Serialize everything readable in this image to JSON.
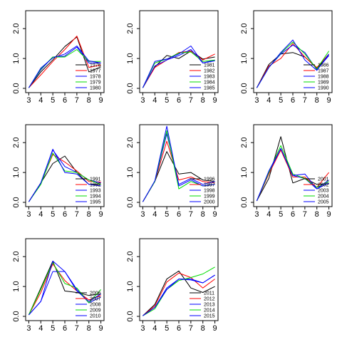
{
  "colors": [
    "#000000",
    "#ff0000",
    "#0000ff",
    "#00dd00",
    "#0000ff"
  ],
  "chart_data": [
    {
      "type": "line",
      "x": [
        3,
        4,
        5,
        6,
        7,
        8,
        9
      ],
      "xticks": [
        "3",
        "4",
        "5",
        "6",
        "7",
        "8",
        "9"
      ],
      "yticks": [
        "0.0",
        "1.0",
        "2.0"
      ],
      "ylim": [
        0,
        2.6
      ],
      "legend_position": "bottom-right",
      "series": [
        {
          "name": "1976",
          "values": [
            0.02,
            0.55,
            0.95,
            1.4,
            1.72,
            0.55,
            0.72
          ]
        },
        {
          "name": "1977",
          "values": [
            0.02,
            0.45,
            0.9,
            1.3,
            1.75,
            0.7,
            0.78
          ]
        },
        {
          "name": "1978",
          "values": [
            0.02,
            0.62,
            1.05,
            1.08,
            1.38,
            0.85,
            0.85
          ]
        },
        {
          "name": "1979",
          "values": [
            0.02,
            0.65,
            1.05,
            1.05,
            1.3,
            0.9,
            0.9
          ]
        },
        {
          "name": "1980",
          "values": [
            0.02,
            0.68,
            1.02,
            1.15,
            1.42,
            0.92,
            0.85
          ]
        }
      ]
    },
    {
      "type": "line",
      "x": [
        3,
        4,
        5,
        6,
        7,
        8,
        9
      ],
      "xticks": [
        "3",
        "4",
        "5",
        "6",
        "7",
        "8",
        "9"
      ],
      "yticks": [
        "0.0",
        "1.0",
        "2.0"
      ],
      "ylim": [
        0,
        2.6
      ],
      "legend_position": "bottom-right",
      "series": [
        {
          "name": "1981",
          "values": [
            0.02,
            0.72,
            1.1,
            1.0,
            1.25,
            0.98,
            1.05
          ]
        },
        {
          "name": "1982",
          "values": [
            0.02,
            0.7,
            0.95,
            1.2,
            1.25,
            0.95,
            1.15
          ]
        },
        {
          "name": "1983",
          "values": [
            0.02,
            0.75,
            0.95,
            1.1,
            1.3,
            0.85,
            0.95
          ]
        },
        {
          "name": "1984",
          "values": [
            0.02,
            0.85,
            0.98,
            1.18,
            1.22,
            0.9,
            0.95
          ]
        },
        {
          "name": "1985",
          "values": [
            0.02,
            0.9,
            0.98,
            1.15,
            1.42,
            0.85,
            0.92
          ]
        }
      ]
    },
    {
      "type": "line",
      "x": [
        3,
        4,
        5,
        6,
        7,
        8,
        9
      ],
      "xticks": [
        "3",
        "4",
        "5",
        "6",
        "7",
        "8",
        "9"
      ],
      "yticks": [
        "0.0",
        "1.0",
        "2.0"
      ],
      "ylim": [
        0,
        2.6
      ],
      "legend_position": "bottom-right",
      "series": [
        {
          "name": "1986",
          "values": [
            0.02,
            0.8,
            1.15,
            1.2,
            1.05,
            0.68,
            1.1
          ]
        },
        {
          "name": "1987",
          "values": [
            0.02,
            0.75,
            1.0,
            1.5,
            1.05,
            0.7,
            1.15
          ]
        },
        {
          "name": "1988",
          "values": [
            0.02,
            0.7,
            1.15,
            1.45,
            1.2,
            0.62,
            1.1
          ]
        },
        {
          "name": "1989",
          "values": [
            0.02,
            0.7,
            1.18,
            1.55,
            1.15,
            0.65,
            1.25
          ]
        },
        {
          "name": "1990",
          "values": [
            0.02,
            0.7,
            1.2,
            1.62,
            0.95,
            0.6,
            1.15
          ]
        }
      ]
    },
    {
      "type": "line",
      "x": [
        3,
        4,
        5,
        6,
        7,
        8,
        9
      ],
      "xticks": [
        "3",
        "4",
        "5",
        "6",
        "7",
        "8",
        "9"
      ],
      "yticks": [
        "0.0",
        "1.0",
        "2.0"
      ],
      "ylim": [
        0,
        2.6
      ],
      "legend_position": "bottom-right",
      "series": [
        {
          "name": "1991",
          "values": [
            0.02,
            0.65,
            1.3,
            1.55,
            1.0,
            0.6,
            0.6
          ]
        },
        {
          "name": "1992",
          "values": [
            0.02,
            0.65,
            1.6,
            1.35,
            1.05,
            0.7,
            0.68
          ]
        },
        {
          "name": "1993",
          "values": [
            0.02,
            0.65,
            1.75,
            1.2,
            1.0,
            0.75,
            0.65
          ]
        },
        {
          "name": "1994",
          "values": [
            0.02,
            0.6,
            1.65,
            1.05,
            1.0,
            0.75,
            0.6
          ]
        },
        {
          "name": "1995",
          "values": [
            0.02,
            0.65,
            1.78,
            1.0,
            0.95,
            0.6,
            0.55
          ]
        }
      ]
    },
    {
      "type": "line",
      "x": [
        3,
        4,
        5,
        6,
        7,
        8,
        9
      ],
      "xticks": [
        "3",
        "4",
        "5",
        "6",
        "7",
        "8",
        "9"
      ],
      "yticks": [
        "0.0",
        "1.0",
        "2.0"
      ],
      "ylim": [
        0,
        2.6
      ],
      "legend_position": "bottom-right",
      "series": [
        {
          "name": "1996",
          "values": [
            0.02,
            0.7,
            1.7,
            0.95,
            1.0,
            0.75,
            0.7
          ]
        },
        {
          "name": "1997",
          "values": [
            0.02,
            0.7,
            2.05,
            0.75,
            0.85,
            0.7,
            0.65
          ]
        },
        {
          "name": "1998",
          "values": [
            0.02,
            0.7,
            2.3,
            0.6,
            0.8,
            0.6,
            0.7
          ]
        },
        {
          "name": "1999",
          "values": [
            0.02,
            0.7,
            2.4,
            0.45,
            0.7,
            0.55,
            0.6
          ]
        },
        {
          "name": "2000",
          "values": [
            0.02,
            0.72,
            2.55,
            0.55,
            0.75,
            0.55,
            0.6
          ]
        }
      ]
    },
    {
      "type": "line",
      "x": [
        3,
        4,
        5,
        6,
        7,
        8,
        9
      ],
      "xticks": [
        "3",
        "4",
        "5",
        "6",
        "7",
        "8",
        "9"
      ],
      "yticks": [
        "0.0",
        "1.0",
        "2.0"
      ],
      "ylim": [
        0,
        2.6
      ],
      "legend_position": "bottom-right",
      "series": [
        {
          "name": "2001",
          "values": [
            0.05,
            0.8,
            2.2,
            0.65,
            0.8,
            0.6,
            0.62
          ]
        },
        {
          "name": "2002",
          "values": [
            0.05,
            0.95,
            1.75,
            0.85,
            0.85,
            0.5,
            1.0
          ]
        },
        {
          "name": "2003",
          "values": [
            0.05,
            1.0,
            1.8,
            0.9,
            0.8,
            0.45,
            0.65
          ]
        },
        {
          "name": "2004",
          "values": [
            0.05,
            1.0,
            1.9,
            0.95,
            0.8,
            0.5,
            0.7
          ]
        },
        {
          "name": "2005",
          "values": [
            0.05,
            1.05,
            1.8,
            0.9,
            0.95,
            0.45,
            0.75
          ]
        }
      ]
    },
    {
      "type": "line",
      "x": [
        3,
        4,
        5,
        6,
        7,
        8,
        9
      ],
      "xticks": [
        "3",
        "4",
        "5",
        "6",
        "7",
        "8",
        "9"
      ],
      "yticks": [
        "0.0",
        "1.0",
        "2.0"
      ],
      "ylim": [
        0,
        2.6
      ],
      "legend_position": "bottom-right",
      "series": [
        {
          "name": "2006",
          "values": [
            0.05,
            0.95,
            1.85,
            0.85,
            0.8,
            0.7,
            0.75
          ]
        },
        {
          "name": "2007",
          "values": [
            0.05,
            0.8,
            1.75,
            1.2,
            0.85,
            0.55,
            0.7
          ]
        },
        {
          "name": "2008",
          "values": [
            0.05,
            0.5,
            1.5,
            1.5,
            0.9,
            0.45,
            0.65
          ]
        },
        {
          "name": "2009",
          "values": [
            0.05,
            0.9,
            1.8,
            1.1,
            0.95,
            0.45,
            0.9
          ]
        },
        {
          "name": "2010",
          "values": [
            0.05,
            0.5,
            1.85,
            1.5,
            0.85,
            0.5,
            0.75
          ]
        }
      ]
    },
    {
      "type": "line",
      "x": [
        3,
        4,
        5,
        6,
        7,
        8,
        9
      ],
      "xticks": [
        "3",
        "4",
        "5",
        "6",
        "7",
        "8",
        "9"
      ],
      "yticks": [
        "0.0",
        "1.0",
        "2.0"
      ],
      "ylim": [
        0,
        2.6
      ],
      "legend_position": "bottom-right",
      "series": [
        {
          "name": "2011",
          "values": [
            0.02,
            0.4,
            1.25,
            1.52,
            0.95,
            0.8,
            1.0
          ]
        },
        {
          "name": "2012",
          "values": [
            0.02,
            0.35,
            1.15,
            1.45,
            1.3,
            0.95,
            1.25
          ]
        },
        {
          "name": "2013",
          "values": [
            0.02,
            0.3,
            0.95,
            1.25,
            1.25,
            1.12,
            1.38
          ]
        },
        {
          "name": "2014",
          "values": [
            0.02,
            0.25,
            0.9,
            1.2,
            1.3,
            1.42,
            1.65
          ]
        },
        {
          "name": "2015",
          "values": [
            0.02,
            0.3,
            0.9,
            1.25,
            1.22,
            1.12,
            1.38
          ]
        }
      ]
    }
  ]
}
